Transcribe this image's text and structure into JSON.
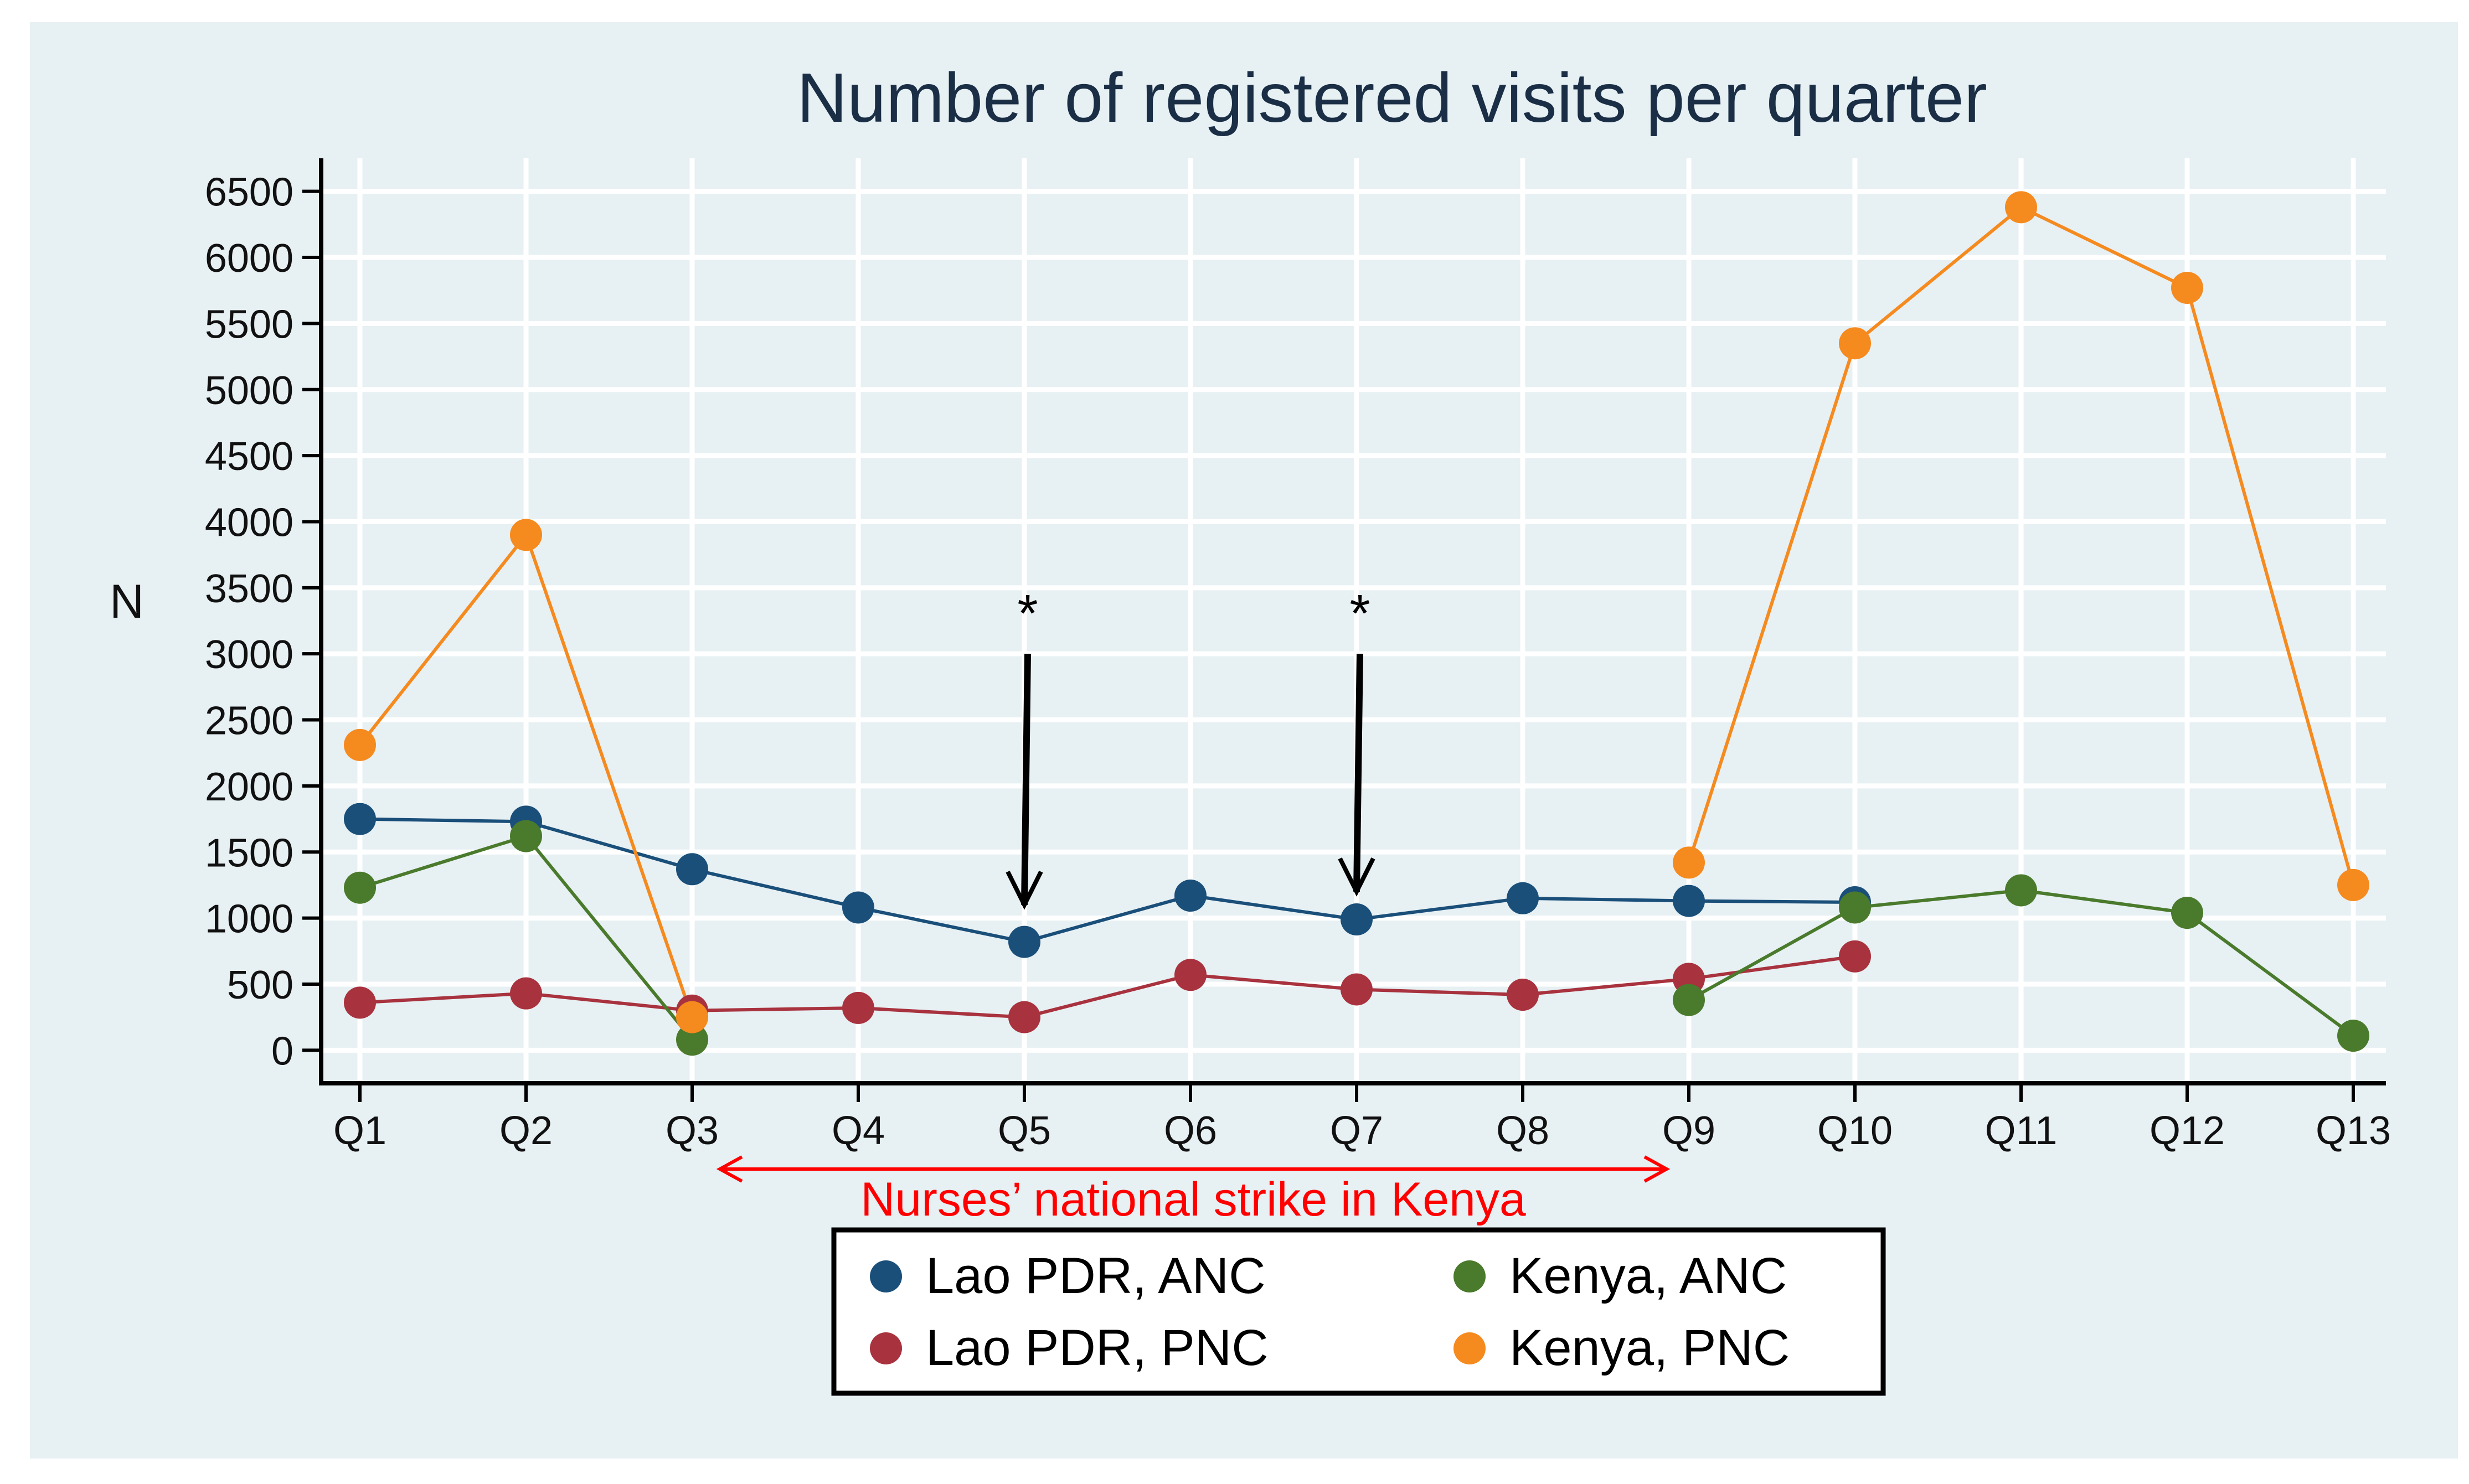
{
  "chart_data": {
    "type": "line",
    "title": "Number of registered visits per quarter",
    "ylabel": "N",
    "xlabel": "",
    "categories": [
      "Q1",
      "Q2",
      "Q3",
      "Q4",
      "Q5",
      "Q6",
      "Q7",
      "Q8",
      "Q9",
      "Q10",
      "Q11",
      "Q12",
      "Q13"
    ],
    "y_ticks": [
      0,
      500,
      1000,
      1500,
      2000,
      2500,
      3000,
      3500,
      4000,
      4500,
      5000,
      5500,
      6000,
      6500
    ],
    "y_tick_labels": [
      "0",
      "500",
      "1000",
      "1500",
      "2000",
      "2500",
      "3000",
      "3500",
      "4000",
      "4500",
      "5000",
      "5500",
      "6000",
      "6500"
    ],
    "ylim": [
      -250,
      6750
    ],
    "grid": true,
    "legend_position": "bottom",
    "series": [
      {
        "name": "Lao PDR, ANC",
        "color": "#1a4f7a",
        "values": [
          1750,
          1730,
          1370,
          1080,
          820,
          1170,
          990,
          1150,
          1130,
          1120,
          null,
          null,
          null
        ]
      },
      {
        "name": "Lao PDR, PNC",
        "color": "#a8323e",
        "values": [
          360,
          430,
          300,
          320,
          250,
          570,
          460,
          420,
          540,
          710,
          null,
          null,
          null
        ]
      },
      {
        "name": "Kenya, ANC",
        "color": "#4a7a2c",
        "values": [
          1230,
          1620,
          80,
          null,
          null,
          null,
          null,
          null,
          380,
          1080,
          1210,
          1040,
          110
        ]
      },
      {
        "name": "Kenya, PNC",
        "color": "#f58a1f",
        "values": [
          2310,
          3900,
          250,
          null,
          null,
          null,
          null,
          null,
          1420,
          5350,
          6380,
          5770,
          1250
        ]
      }
    ],
    "annotations": [
      {
        "text": "*",
        "category": "Q5",
        "arrow_from": 3000,
        "arrow_to": 1100,
        "color": "#000000"
      },
      {
        "text": "*",
        "category": "Q7",
        "arrow_from": 3000,
        "arrow_to": 1200,
        "color": "#000000"
      },
      {
        "text": "Nurses’ national strike in Kenya",
        "from": "Q3",
        "to": "Q9",
        "color": "#ff0000"
      }
    ]
  }
}
